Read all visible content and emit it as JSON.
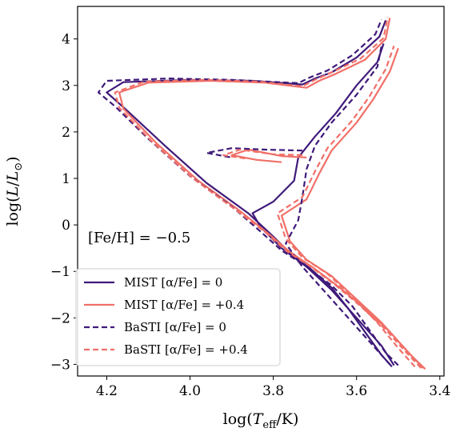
{
  "chart_data": {
    "type": "line",
    "xlabel": "log(T_eff/K)",
    "ylabel": "log(L/L_⊙)",
    "xlim": [
      4.27,
      3.39
    ],
    "ylim": [
      -3.25,
      4.7
    ],
    "x_ticks": [
      4.2,
      4.0,
      3.8,
      3.6,
      3.4
    ],
    "x_tick_labels": [
      "4.2",
      "4.0",
      "3.8",
      "3.6",
      "3.4"
    ],
    "y_ticks": [
      -3,
      -2,
      -1,
      0,
      1,
      2,
      3,
      4
    ],
    "y_tick_labels": [
      "−3",
      "−2",
      "−1",
      "0",
      "1",
      "2",
      "3",
      "4"
    ],
    "annotation": "[Fe/H] = −0.5",
    "legend_position": "lower-left",
    "series": [
      {
        "name": "MIST [α/Fe] = 0",
        "color": "#3f1a7a",
        "dash": "solid",
        "tracks": [
          [
            [
              3.515,
              -3.05
            ],
            [
              3.54,
              -2.8
            ],
            [
              3.58,
              -2.3
            ],
            [
              3.62,
              -1.8
            ],
            [
              3.66,
              -1.35
            ],
            [
              3.71,
              -0.95
            ],
            [
              3.76,
              -0.6
            ],
            [
              3.8,
              -0.25
            ],
            [
              3.86,
              0.25
            ],
            [
              3.96,
              0.9
            ],
            [
              4.06,
              1.7
            ],
            [
              4.15,
              2.45
            ],
            [
              4.2,
              2.85
            ],
            [
              4.16,
              3.07
            ],
            [
              4.0,
              3.12
            ],
            [
              3.85,
              3.1
            ],
            [
              3.73,
              3.02
            ],
            [
              3.7,
              3.15
            ],
            [
              3.66,
              3.28
            ],
            [
              3.6,
              3.6
            ],
            [
              3.545,
              4.05
            ],
            [
              3.53,
              4.4
            ]
          ],
          [
            [
              3.51,
              -3.02
            ],
            [
              3.54,
              -2.6
            ],
            [
              3.6,
              -2.0
            ],
            [
              3.66,
              -1.4
            ],
            [
              3.72,
              -0.9
            ],
            [
              3.78,
              -0.5
            ],
            [
              3.83,
              -0.05
            ],
            [
              3.85,
              0.25
            ],
            [
              3.8,
              0.5
            ],
            [
              3.75,
              0.95
            ],
            [
              3.74,
              1.45
            ],
            [
              3.7,
              1.9
            ],
            [
              3.65,
              2.4
            ],
            [
              3.6,
              3.0
            ],
            [
              3.55,
              3.5
            ],
            [
              3.535,
              3.9
            ]
          ]
        ]
      },
      {
        "name": "MIST [α/Fe] = +0.4",
        "color": "#f07068",
        "dash": "solid",
        "tracks": [
          [
            [
              3.435,
              -3.1
            ],
            [
              3.47,
              -2.8
            ],
            [
              3.52,
              -2.3
            ],
            [
              3.58,
              -1.8
            ],
            [
              3.64,
              -1.35
            ],
            [
              3.7,
              -0.95
            ],
            [
              3.76,
              -0.58
            ],
            [
              3.81,
              -0.2
            ],
            [
              3.88,
              0.3
            ],
            [
              3.98,
              0.95
            ],
            [
              4.08,
              1.75
            ],
            [
              4.16,
              2.5
            ],
            [
              4.17,
              2.85
            ],
            [
              4.1,
              3.06
            ],
            [
              3.95,
              3.1
            ],
            [
              3.82,
              3.06
            ],
            [
              3.72,
              2.95
            ],
            [
              3.69,
              3.1
            ],
            [
              3.65,
              3.25
            ],
            [
              3.58,
              3.55
            ],
            [
              3.53,
              4.0
            ],
            [
              3.52,
              4.45
            ]
          ],
          [
            [
              3.44,
              -3.08
            ],
            [
              3.48,
              -2.7
            ],
            [
              3.54,
              -2.1
            ],
            [
              3.6,
              -1.6
            ],
            [
              3.66,
              -1.1
            ],
            [
              3.72,
              -0.75
            ],
            [
              3.76,
              -0.35
            ],
            [
              3.78,
              0.2
            ],
            [
              3.72,
              0.55
            ],
            [
              3.69,
              1.1
            ],
            [
              3.66,
              1.6
            ],
            [
              3.6,
              2.2
            ],
            [
              3.56,
              2.7
            ],
            [
              3.52,
              3.3
            ],
            [
              3.5,
              3.8
            ]
          ],
          [
            [
              3.72,
              1.45
            ],
            [
              3.78,
              1.48
            ],
            [
              3.86,
              1.62
            ],
            [
              3.9,
              1.5
            ],
            [
              3.84,
              1.4
            ],
            [
              3.78,
              1.35
            ]
          ]
        ]
      },
      {
        "name": "BaSTI [α/Fe] = 0",
        "color": "#3f1a7a",
        "dash": "dashed",
        "tracks": [
          [
            [
              3.5,
              -3.02
            ],
            [
              3.53,
              -2.75
            ],
            [
              3.57,
              -2.25
            ],
            [
              3.61,
              -1.75
            ],
            [
              3.66,
              -1.3
            ],
            [
              3.72,
              -0.9
            ],
            [
              3.78,
              -0.55
            ],
            [
              3.83,
              -0.15
            ],
            [
              3.9,
              0.4
            ],
            [
              4.0,
              1.05
            ],
            [
              4.1,
              1.85
            ],
            [
              4.18,
              2.55
            ],
            [
              4.22,
              2.85
            ],
            [
              4.2,
              3.1
            ],
            [
              4.05,
              3.15
            ],
            [
              3.9,
              3.12
            ],
            [
              3.74,
              3.05
            ],
            [
              3.71,
              3.18
            ],
            [
              3.67,
              3.32
            ],
            [
              3.61,
              3.65
            ],
            [
              3.555,
              4.1
            ],
            [
              3.54,
              4.42
            ]
          ],
          [
            [
              3.52,
              -3.0
            ],
            [
              3.56,
              -2.6
            ],
            [
              3.62,
              -2.0
            ],
            [
              3.68,
              -1.4
            ],
            [
              3.73,
              -0.9
            ],
            [
              3.77,
              -0.4
            ],
            [
              3.74,
              0.1
            ],
            [
              3.73,
              0.6
            ],
            [
              3.72,
              1.2
            ],
            [
              3.7,
              1.7
            ],
            [
              3.66,
              2.2
            ],
            [
              3.6,
              2.8
            ],
            [
              3.55,
              3.4
            ],
            [
              3.54,
              3.85
            ]
          ],
          [
            [
              3.73,
              1.6
            ],
            [
              3.82,
              1.62
            ],
            [
              3.9,
              1.65
            ],
            [
              3.96,
              1.55
            ],
            [
              3.9,
              1.45
            ]
          ]
        ]
      },
      {
        "name": "BaSTI [α/Fe] = +0.4",
        "color": "#f07068",
        "dash": "dashed",
        "tracks": [
          [
            [
              3.445,
              -3.08
            ],
            [
              3.48,
              -2.75
            ],
            [
              3.53,
              -2.25
            ],
            [
              3.59,
              -1.75
            ],
            [
              3.65,
              -1.3
            ],
            [
              3.71,
              -0.9
            ],
            [
              3.77,
              -0.55
            ],
            [
              3.82,
              -0.15
            ],
            [
              3.89,
              0.32
            ],
            [
              3.99,
              0.98
            ],
            [
              4.09,
              1.78
            ],
            [
              4.17,
              2.52
            ],
            [
              4.18,
              2.85
            ],
            [
              4.11,
              3.08
            ],
            [
              3.96,
              3.12
            ],
            [
              3.83,
              3.08
            ],
            [
              3.73,
              2.98
            ],
            [
              3.7,
              3.12
            ],
            [
              3.66,
              3.28
            ],
            [
              3.59,
              3.58
            ],
            [
              3.535,
              4.02
            ],
            [
              3.525,
              4.47
            ]
          ],
          [
            [
              3.46,
              -3.05
            ],
            [
              3.5,
              -2.65
            ],
            [
              3.55,
              -2.1
            ],
            [
              3.61,
              -1.55
            ],
            [
              3.67,
              -1.05
            ],
            [
              3.73,
              -0.7
            ],
            [
              3.77,
              -0.3
            ],
            [
              3.79,
              0.25
            ],
            [
              3.73,
              0.6
            ],
            [
              3.7,
              1.15
            ],
            [
              3.67,
              1.65
            ],
            [
              3.61,
              2.25
            ],
            [
              3.57,
              2.75
            ],
            [
              3.53,
              3.35
            ],
            [
              3.51,
              3.85
            ]
          ],
          [
            [
              3.73,
              1.5
            ],
            [
              3.8,
              1.52
            ],
            [
              3.88,
              1.62
            ],
            [
              3.92,
              1.5
            ],
            [
              3.86,
              1.42
            ]
          ]
        ]
      }
    ]
  }
}
